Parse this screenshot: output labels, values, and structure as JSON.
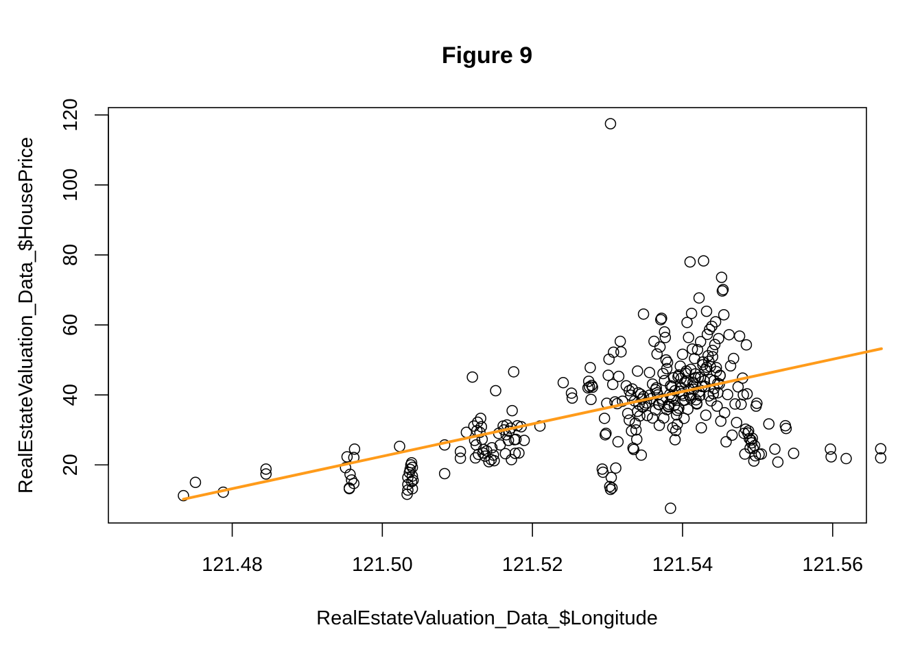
{
  "chart_data": {
    "type": "scatter",
    "title": "Figure 9",
    "xlabel": "RealEstateValuation_Data_$Longitude",
    "ylabel": "RealEstateValuation_Data_$HousePrice",
    "xlim": [
      121.4635,
      121.5645
    ],
    "ylim": [
      3.4,
      122.1
    ],
    "x_ticks": [
      121.48,
      121.5,
      121.52,
      121.54,
      121.56
    ],
    "x_tick_labels": [
      "121.48",
      "121.50",
      "121.52",
      "121.54",
      "121.56"
    ],
    "y_ticks": [
      20,
      40,
      60,
      80,
      100,
      120
    ],
    "y_tick_labels": [
      "20",
      "40",
      "60",
      "80",
      "100",
      "120"
    ],
    "grid": false,
    "colors": {
      "points": "#000000",
      "fit_line": "#FF9B1A"
    },
    "regression_line": {
      "x": [
        121.4735,
        121.5665
      ],
      "y": [
        10.2,
        53.2
      ]
    },
    "x": [
      121.4735,
      121.4751,
      121.4788,
      121.4845,
      121.4845,
      121.4951,
      121.4953,
      121.4956,
      121.4956,
      121.4957,
      121.4959,
      121.4962,
      121.4962,
      121.4963,
      121.5023,
      121.5033,
      121.5034,
      121.5034,
      121.5034,
      121.5036,
      121.5037,
      121.5038,
      121.5039,
      121.5039,
      121.504,
      121.504,
      121.504,
      121.5041,
      121.5083,
      121.5083,
      121.5104,
      121.5104,
      121.5112,
      121.512,
      121.5122,
      121.5123,
      121.5124,
      121.5125,
      121.5126,
      121.5127,
      121.5128,
      121.513,
      121.5131,
      121.5132,
      121.5133,
      121.5134,
      121.5135,
      121.5137,
      121.5139,
      121.5142,
      121.5145,
      121.5146,
      121.5148,
      121.5149,
      121.5151,
      121.5155,
      121.5157,
      121.5161,
      121.5162,
      121.5164,
      121.5165,
      121.5166,
      121.5168,
      121.5169,
      121.5171,
      121.5172,
      121.5173,
      121.5175,
      121.5176,
      121.5177,
      121.5178,
      121.518,
      121.5182,
      121.5185,
      121.5189,
      121.521,
      121.5241,
      121.5252,
      121.5253,
      121.5274,
      121.5275,
      121.5276,
      121.5277,
      121.5278,
      121.5279,
      121.528,
      121.5293,
      121.5294,
      121.5296,
      121.5297,
      121.5298,
      121.5299,
      121.5301,
      121.5302,
      121.5303,
      121.5304,
      121.5305,
      121.5306,
      121.5307,
      121.5308,
      121.531,
      121.5311,
      121.5313,
      121.5314,
      121.5315,
      121.5317,
      121.5318,
      121.532,
      121.5325,
      121.5327,
      121.5329,
      121.5331,
      121.5332,
      121.5333,
      121.5334,
      121.5335,
      121.5336,
      121.5337,
      121.5338,
      121.5339,
      121.534,
      121.5341,
      121.5342,
      121.5343,
      121.5344,
      121.5345,
      121.5346,
      121.5347,
      121.5348,
      121.535,
      121.5353,
      121.5356,
      121.5358,
      121.536,
      121.5362,
      121.5364,
      121.5365,
      121.5366,
      121.5367,
      121.5368,
      121.5369,
      121.537,
      121.5371,
      121.5372,
      121.5373,
      121.5374,
      121.5375,
      121.5376,
      121.5377,
      121.5378,
      121.5379,
      121.538,
      121.5381,
      121.5382,
      121.5383,
      121.5384,
      121.5385,
      121.5386,
      121.5387,
      121.5388,
      121.5389,
      121.539,
      121.5391,
      121.5392,
      121.5393,
      121.5394,
      121.5395,
      121.5396,
      121.5397,
      121.5398,
      121.5399,
      121.54,
      121.5401,
      121.5402,
      121.5403,
      121.5404,
      121.5405,
      121.5406,
      121.5407,
      121.5408,
      121.5409,
      121.541,
      121.5411,
      121.5412,
      121.5413,
      121.5414,
      121.5415,
      121.5416,
      121.5417,
      121.5418,
      121.5419,
      121.542,
      121.5421,
      121.5422,
      121.5423,
      121.5424,
      121.5425,
      121.5426,
      121.5427,
      121.5428,
      121.5429,
      121.543,
      121.5431,
      121.5432,
      121.5433,
      121.5434,
      121.5435,
      121.5436,
      121.5437,
      121.5438,
      121.5439,
      121.544,
      121.5441,
      121.5442,
      121.5443,
      121.5444,
      121.5445,
      121.5446,
      121.5447,
      121.5448,
      121.5449,
      121.545,
      121.5451,
      121.5452,
      121.5453,
      121.5454,
      121.5455,
      121.5456,
      121.5458,
      121.546,
      121.5462,
      121.5464,
      121.5466,
      121.5468,
      121.547,
      121.5472,
      121.5474,
      121.5476,
      121.5478,
      121.548,
      121.5481,
      121.5482,
      121.5483,
      121.5484,
      121.5485,
      121.5486,
      121.5487,
      121.5488,
      121.5489,
      121.549,
      121.5491,
      121.5492,
      121.5493,
      121.5494,
      121.5495,
      121.5496,
      121.5497,
      121.5498,
      121.5499,
      121.5502,
      121.5505,
      121.5515,
      121.5523,
      121.5527,
      121.5537,
      121.5538,
      121.5548,
      121.5597,
      121.5598,
      121.5618,
      121.5664,
      121.5664,
      121.5304,
      121.5329,
      121.534,
      121.5348,
      121.5352,
      121.5356,
      121.536,
      121.5364,
      121.5366,
      121.5369,
      121.5373,
      121.5376,
      121.5379,
      121.5381,
      121.5384,
      121.5387,
      121.539,
      121.5393,
      121.5395,
      121.5398,
      121.5401,
      121.5403,
      121.5406,
      121.5409,
      121.5411,
      121.5414,
      121.5417,
      121.5419,
      121.5422,
      121.5424,
      121.5427,
      121.543,
      121.5432,
      121.5435,
      121.5437,
      121.544,
      121.5442,
      121.5445,
      121.5447,
      121.545
    ],
    "y": [
      11.2,
      15.0,
      12.2,
      18.8,
      17.4,
      19.2,
      22.3,
      13.2,
      13.4,
      17.3,
      15.7,
      14.7,
      22.1,
      24.5,
      25.3,
      11.6,
      12.8,
      14.4,
      16.4,
      17.8,
      18.7,
      20.0,
      20.6,
      15.2,
      13.2,
      19.3,
      16.8,
      15.6,
      25.7,
      17.5,
      21.9,
      23.8,
      29.3,
      45.1,
      31.1,
      27.0,
      22.0,
      25.7,
      29.8,
      32.2,
      23.0,
      29.3,
      33.3,
      30.9,
      27.3,
      23.4,
      24.4,
      22.5,
      24.0,
      20.9,
      21.5,
      24.9,
      22.8,
      21.2,
      41.2,
      29.0,
      25.7,
      31.1,
      30.0,
      23.2,
      28.6,
      31.4,
      27.0,
      29.6,
      30.5,
      21.5,
      35.5,
      46.6,
      27.2,
      23.3,
      27.3,
      31.2,
      23.4,
      30.9,
      27.0,
      31.1,
      43.5,
      40.5,
      39.1,
      42.0,
      43.9,
      42.3,
      47.8,
      38.7,
      42.7,
      42.2,
      18.8,
      17.9,
      33.3,
      28.6,
      29.0,
      37.6,
      45.6,
      50.2,
      13.8,
      13.0,
      16.4,
      13.4,
      43.0,
      52.2,
      38.0,
      19.1,
      37.5,
      26.6,
      45.3,
      55.3,
      52.3,
      38.2,
      42.6,
      34.7,
      41.2,
      39.9,
      29.7,
      41.7,
      24.8,
      24.4,
      38.3,
      31.9,
      30.0,
      27.3,
      35.3,
      40.6,
      37.3,
      34.0,
      40.2,
      22.8,
      38.8,
      36.5,
      63.1,
      37.2,
      34.1,
      46.4,
      38.9,
      33.4,
      55.3,
      35.7,
      42.0,
      51.7,
      40.0,
      37.3,
      31.3,
      53.7,
      61.5,
      61.9,
      38.3,
      46.1,
      33.4,
      58.0,
      56.4,
      50.0,
      47.5,
      49.3,
      36.8,
      37.3,
      40.1,
      7.6,
      39.5,
      42.4,
      30.6,
      44.9,
      37.0,
      27.2,
      29.8,
      34.3,
      31.6,
      45.2,
      36.2,
      41.0,
      48.2,
      44.7,
      40.3,
      51.6,
      38.4,
      33.3,
      43.7,
      46.2,
      46.8,
      60.7,
      35.9,
      56.4,
      39.9,
      78.0,
      47.3,
      63.3,
      53.1,
      42.5,
      41.6,
      50.4,
      44.9,
      38.6,
      37.6,
      52.9,
      45.0,
      67.7,
      39.8,
      55.2,
      30.6,
      42.4,
      49.4,
      78.3,
      44.0,
      47.2,
      34.2,
      63.9,
      57.3,
      51.2,
      49.6,
      58.7,
      48.1,
      38.3,
      59.6,
      52.7,
      40.3,
      44.1,
      54.4,
      60.9,
      47.8,
      36.8,
      40.6,
      56.1,
      43.1,
      45.5,
      32.5,
      73.6,
      69.7,
      70.1,
      62.9,
      34.9,
      26.6,
      40.1,
      57.2,
      48.3,
      28.5,
      50.4,
      37.4,
      32.1,
      42.3,
      56.8,
      37.3,
      44.8,
      40.0,
      29.0,
      23.1,
      30.2,
      54.3,
      40.3,
      29.1,
      29.7,
      27.5,
      24.8,
      27.1,
      26.3,
      27.6,
      24.7,
      21.1,
      25.5,
      22.6,
      36.8,
      37.6,
      23.0,
      23.1,
      31.7,
      24.5,
      20.8,
      31.2,
      30.4,
      23.3,
      24.5,
      22.3,
      21.8,
      24.6,
      22.0,
      117.5,
      32.8,
      46.8,
      39.5,
      37.7,
      39.9,
      43.1,
      41.5,
      40.6,
      37.2,
      38.8,
      44.1,
      35.8,
      36.6,
      42.6,
      39.0,
      41.2,
      35.6,
      45.7,
      42.1,
      39.8,
      38.5,
      44.0,
      41.6,
      39.1,
      43.6,
      46.0,
      37.4,
      40.9,
      45.1,
      48.6,
      42.4,
      47.9,
      39.7,
      44.4,
      50.9,
      41.8,
      46.7,
      43.3,
      45.6
    ]
  }
}
